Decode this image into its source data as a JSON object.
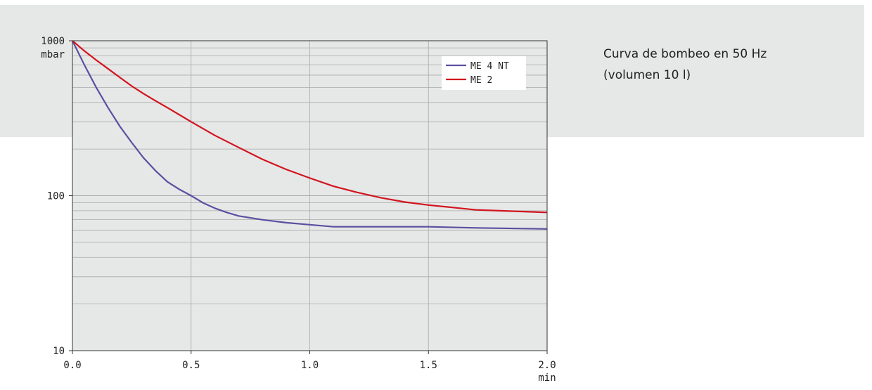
{
  "caption": {
    "line1": "Curva de bombeo en 50 Hz",
    "line2": "(volumen 10 l)"
  },
  "colors": {
    "band": "#e6e7e7",
    "plot_bg": "#e6e7e7",
    "me4nt": "#5b4fa0",
    "me2": "#d2141e"
  },
  "chart_data": {
    "type": "line",
    "x_scale": "linear",
    "y_scale": "log",
    "xlim": [
      0,
      2.0
    ],
    "ylim": [
      10,
      1000
    ],
    "x_ticks": [
      "0.0",
      "0.5",
      "1.0",
      "1.5",
      "2.0"
    ],
    "x_unit": "min",
    "y_ticks": [
      "10",
      "100",
      "1000"
    ],
    "y_unit": "mbar",
    "grid": true,
    "legend_position": "top-right",
    "series": [
      {
        "name": "ME 4 NT",
        "color": "#5b4fa0",
        "x": [
          0,
          0.05,
          0.1,
          0.15,
          0.2,
          0.25,
          0.3,
          0.35,
          0.4,
          0.45,
          0.5,
          0.55,
          0.6,
          0.65,
          0.7,
          0.8,
          0.9,
          1.0,
          1.1,
          1.2,
          1.3,
          1.5,
          1.7,
          2.0
        ],
        "y": [
          1000,
          700,
          500,
          370,
          280,
          220,
          175,
          145,
          123,
          110,
          100,
          90,
          83,
          78,
          74,
          70,
          67,
          65,
          63,
          63,
          63,
          63,
          62,
          61
        ]
      },
      {
        "name": "ME 2",
        "color": "#d2141e",
        "x": [
          0,
          0.05,
          0.1,
          0.15,
          0.2,
          0.25,
          0.3,
          0.35,
          0.4,
          0.5,
          0.6,
          0.7,
          0.8,
          0.9,
          1.0,
          1.1,
          1.2,
          1.3,
          1.4,
          1.5,
          1.6,
          1.7,
          1.8,
          2.0
        ],
        "y": [
          1000,
          860,
          750,
          660,
          580,
          510,
          455,
          410,
          370,
          300,
          245,
          205,
          172,
          148,
          130,
          115,
          105,
          97,
          91,
          87,
          84,
          81,
          80,
          78
        ]
      }
    ]
  }
}
